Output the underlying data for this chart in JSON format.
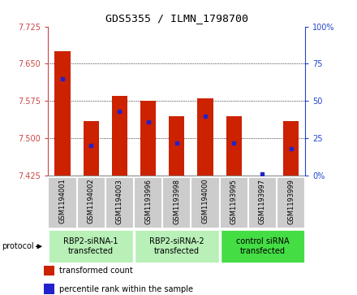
{
  "title": "GDS5355 / ILMN_1798700",
  "samples": [
    "GSM1194001",
    "GSM1194002",
    "GSM1194003",
    "GSM1193996",
    "GSM1193998",
    "GSM1194000",
    "GSM1193995",
    "GSM1193997",
    "GSM1193999"
  ],
  "bar_values": [
    7.675,
    7.535,
    7.585,
    7.575,
    7.545,
    7.58,
    7.545,
    7.425,
    7.535
  ],
  "percentile_values": [
    65,
    20,
    43,
    36,
    22,
    40,
    22,
    1,
    18
  ],
  "ylim": [
    7.425,
    7.725
  ],
  "ylim_right": [
    0,
    100
  ],
  "yticks_left": [
    7.425,
    7.5,
    7.575,
    7.65,
    7.725
  ],
  "yticks_right": [
    0,
    25,
    50,
    75,
    100
  ],
  "ytick_labels_right": [
    "0%",
    "25",
    "50",
    "75",
    "100%"
  ],
  "base_value": 7.425,
  "bar_color": "#cc2200",
  "dot_color": "#2222cc",
  "bar_width": 0.55,
  "groups": [
    {
      "label": "RBP2-siRNA-1\ntransfected",
      "start": 0,
      "end": 3,
      "color": "#b8f0b8"
    },
    {
      "label": "RBP2-siRNA-2\ntransfected",
      "start": 3,
      "end": 6,
      "color": "#b8f0b8"
    },
    {
      "label": "control siRNA\ntransfected",
      "start": 6,
      "end": 9,
      "color": "#44dd44"
    }
  ],
  "protocol_label": "protocol",
  "legend_items": [
    {
      "color": "#cc2200",
      "label": "transformed count"
    },
    {
      "color": "#2222cc",
      "label": "percentile rank within the sample"
    }
  ],
  "tick_color_left": "#cc4444",
  "tick_color_right": "#2244cc",
  "bg_color": "#ffffff",
  "xticklabel_bg": "#cccccc",
  "grid_yticks": [
    7.5,
    7.575,
    7.65
  ]
}
